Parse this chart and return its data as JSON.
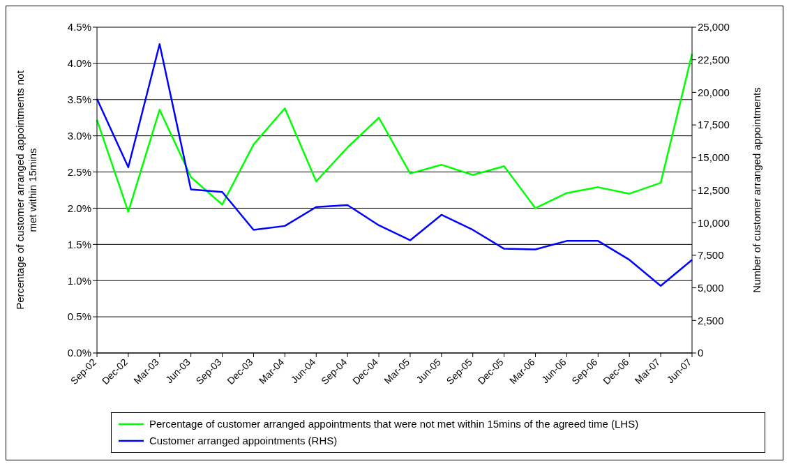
{
  "chart_data": {
    "type": "line",
    "ylabel": "Percentage of customer arranged appointments not met within 15mins",
    "y2label": "Number of customer arranged appointments",
    "categories": [
      "Sep-02",
      "Dec-02",
      "Mar-03",
      "Jun-03",
      "Sep-03",
      "Dec-03",
      "Mar-04",
      "Jun-04",
      "Sep-04",
      "Dec-04",
      "Mar-05",
      "Jun-05",
      "Sep-05",
      "Dec-05",
      "Mar-06",
      "Jun-06",
      "Sep-06",
      "Dec-06",
      "Mar-07",
      "Jun-07"
    ],
    "series": [
      {
        "name": "Percentage of customer arranged appointments that were not met within 15mins of the agreed time (LHS)",
        "color": "#00ff00",
        "values": [
          3.22,
          1.95,
          3.36,
          2.43,
          2.05,
          2.88,
          3.38,
          2.37,
          2.84,
          3.25,
          2.48,
          2.6,
          2.46,
          2.58,
          2.0,
          2.21,
          2.29,
          2.2,
          2.35,
          4.13
        ]
      },
      {
        "name": "Customer arranged appointments (RHS)",
        "color": "#0000ff",
        "axis": "y2",
        "values": [
          19500,
          14250,
          23700,
          12550,
          12350,
          9450,
          9750,
          11200,
          11350,
          9800,
          8650,
          10600,
          9450,
          8000,
          7950,
          8600,
          8600,
          7150,
          5150,
          7150
        ]
      }
    ],
    "ylim": [
      0,
      4.5
    ],
    "yticks": [
      {
        "value": 0,
        "label": "0.0%"
      },
      {
        "value": 0.5,
        "label": "0.5%"
      },
      {
        "value": 1,
        "label": "1.0%"
      },
      {
        "value": 1.5,
        "label": "1.5%"
      },
      {
        "value": 2,
        "label": "2.0%"
      },
      {
        "value": 2.5,
        "label": "2.5%"
      },
      {
        "value": 3,
        "label": "3.0%"
      },
      {
        "value": 3.5,
        "label": "3.5%"
      },
      {
        "value": 4,
        "label": "4.0%"
      },
      {
        "value": 4.5,
        "label": "4.5%"
      }
    ],
    "y2lim": [
      0,
      25000
    ],
    "y2ticks": [
      0,
      {
        "value": 2500,
        "label": "2,500"
      },
      {
        "value": 5000,
        "label": "5,000"
      },
      {
        "value": 7500,
        "label": "7,500"
      },
      {
        "value": 10000,
        "label": "10,000"
      },
      {
        "value": 12500,
        "label": "12,500"
      },
      {
        "value": 15000,
        "label": "15,000"
      },
      {
        "value": 17500,
        "label": "17,500"
      },
      {
        "value": 20000,
        "label": "20,000"
      },
      {
        "value": 22500,
        "label": "22,500"
      },
      {
        "value": 25000,
        "label": "25,000"
      }
    ],
    "grid": "y",
    "legend": "bottom",
    "marker": "none",
    "line_style": "solid"
  }
}
